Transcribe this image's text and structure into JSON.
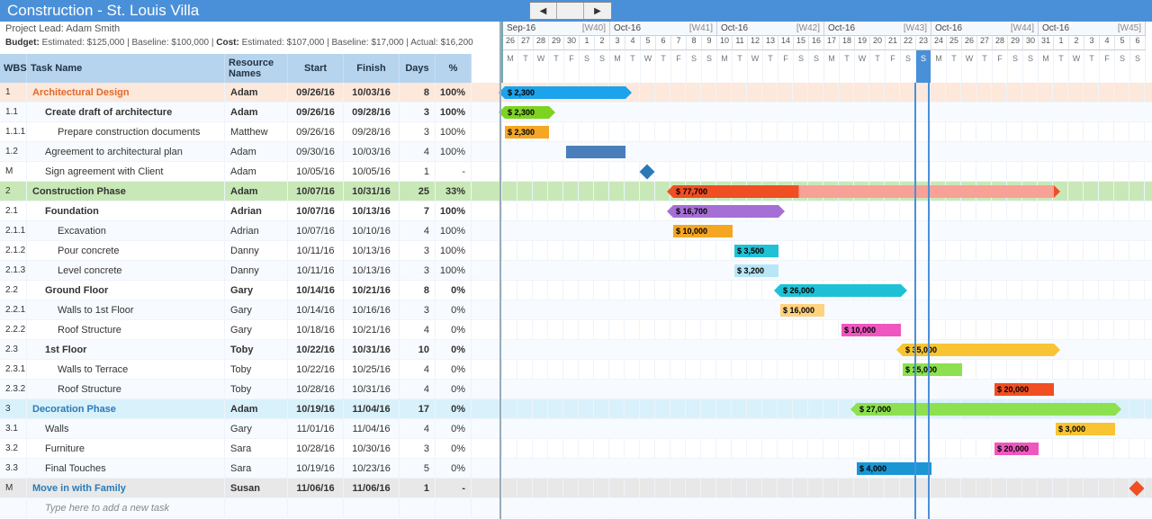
{
  "title": "Construction - St. Louis Villa",
  "project_lead": "Project Lead: Adam Smith",
  "budget_line": {
    "budget_label": "Budget:",
    "est_label": "Estimated:",
    "est": "$125,000",
    "base_label": "Baseline:",
    "base": "$100,000",
    "cost_label": "Cost:",
    "cest": "$107,000",
    "cbase": "$17,000",
    "act_label": "Actual:",
    "act": "$16,200"
  },
  "columns": {
    "wbs": "WBS",
    "task": "Task Name",
    "res": "Resource Names",
    "start": "Start",
    "finish": "Finish",
    "days": "Days",
    "pct": "%"
  },
  "nav": {
    "left": "◀",
    "mid": "",
    "right": "▶"
  },
  "weeks": [
    {
      "m": "Sep-16",
      "w": "[W40]"
    },
    {
      "m": "Oct-16",
      "w": "[W41]"
    },
    {
      "m": "Oct-16",
      "w": "[W42]"
    },
    {
      "m": "Oct-16",
      "w": "[W43]"
    },
    {
      "m": "Oct-16",
      "w": "[W44]"
    },
    {
      "m": "Oct-16",
      "w": "[W45]"
    }
  ],
  "daynums": [
    "26",
    "27",
    "28",
    "29",
    "30",
    "1",
    "2",
    "3",
    "4",
    "5",
    "6",
    "7",
    "8",
    "9",
    "10",
    "11",
    "12",
    "13",
    "14",
    "15",
    "16",
    "17",
    "18",
    "19",
    "20",
    "21",
    "22",
    "23",
    "24",
    "25",
    "26",
    "27",
    "28",
    "29",
    "30",
    "31",
    "1",
    "2",
    "3",
    "4",
    "5",
    "6"
  ],
  "dows": [
    "M",
    "T",
    "W",
    "T",
    "F",
    "S",
    "S",
    "M",
    "T",
    "W",
    "T",
    "F",
    "S",
    "S",
    "M",
    "T",
    "W",
    "T",
    "F",
    "S",
    "S",
    "M",
    "T",
    "W",
    "T",
    "F",
    "S",
    "S",
    "M",
    "T",
    "W",
    "T",
    "F",
    "S",
    "S",
    "M",
    "T",
    "W",
    "T",
    "F",
    "S",
    "S"
  ],
  "today_idx": 27,
  "day_width": 17,
  "colors": {
    "blue": "#1ca3ec",
    "green": "#7ed321",
    "orange": "#f5a623",
    "royal": "#4a7ebb",
    "diamond": "#2a7ab8",
    "red": "#f04e23",
    "purple": "#a56fd6",
    "cyan": "#1fc1d6",
    "lcyan": "#b9e6f5",
    "magenta": "#f056c0",
    "yellow": "#f8c433",
    "lime": "#8de04f",
    "dblue": "#1a96d4",
    "dorange": "#f5a623",
    "odiamond": "#f04e23",
    "salmon": "#f8a196",
    "lpurple": "#d1b3ea",
    "ltask": "#ffd27f"
  },
  "rows": [
    {
      "wbs": "1",
      "name": "Architectural Design",
      "res": "Adam",
      "start": "09/26/16",
      "finish": "10/03/16",
      "days": "8",
      "pct": "100%",
      "cls": "hl-orange",
      "tcls": "ind0 bold",
      "indent": 0,
      "bold": true
    },
    {
      "wbs": "1.1",
      "name": "Create draft of architecture",
      "res": "Adam",
      "start": "09/26/16",
      "finish": "09/28/16",
      "days": "3",
      "pct": "100%",
      "indent": 1,
      "bold": true
    },
    {
      "wbs": "1.1.1",
      "name": "Prepare construction documents",
      "res": "Matthew",
      "start": "09/26/16",
      "finish": "09/28/16",
      "days": "3",
      "pct": "100%",
      "indent": 2
    },
    {
      "wbs": "1.2",
      "name": "Agreement to architectural plan",
      "res": "Adam",
      "start": "09/30/16",
      "finish": "10/03/16",
      "days": "4",
      "pct": "100%",
      "indent": 1
    },
    {
      "wbs": "M",
      "name": "Sign agreement with Client",
      "res": "Adam",
      "start": "10/05/16",
      "finish": "10/05/16",
      "days": "1",
      "pct": "-",
      "indent": 1
    },
    {
      "wbs": "2",
      "name": "Construction Phase",
      "res": "Adam",
      "start": "10/07/16",
      "finish": "10/31/16",
      "days": "25",
      "pct": "33%",
      "cls": "hl-green",
      "tcls": "bold",
      "indent": 0,
      "bold": true
    },
    {
      "wbs": "2.1",
      "name": "Foundation",
      "res": "Adrian",
      "start": "10/07/16",
      "finish": "10/13/16",
      "days": "7",
      "pct": "100%",
      "indent": 1,
      "bold": true
    },
    {
      "wbs": "2.1.1",
      "name": "Excavation",
      "res": "Adrian",
      "start": "10/07/16",
      "finish": "10/10/16",
      "days": "4",
      "pct": "100%",
      "indent": 2
    },
    {
      "wbs": "2.1.2",
      "name": "Pour concrete",
      "res": "Danny",
      "start": "10/11/16",
      "finish": "10/13/16",
      "days": "3",
      "pct": "100%",
      "indent": 2
    },
    {
      "wbs": "2.1.3",
      "name": "Level concrete",
      "res": "Danny",
      "start": "10/11/16",
      "finish": "10/13/16",
      "days": "3",
      "pct": "100%",
      "indent": 2
    },
    {
      "wbs": "2.2",
      "name": "Ground Floor",
      "res": "Gary",
      "start": "10/14/16",
      "finish": "10/21/16",
      "days": "8",
      "pct": "0%",
      "indent": 1,
      "bold": true
    },
    {
      "wbs": "2.2.1",
      "name": "Walls to 1st Floor",
      "res": "Gary",
      "start": "10/14/16",
      "finish": "10/16/16",
      "days": "3",
      "pct": "0%",
      "indent": 2
    },
    {
      "wbs": "2.2.2",
      "name": "Roof Structure",
      "res": "Gary",
      "start": "10/18/16",
      "finish": "10/21/16",
      "days": "4",
      "pct": "0%",
      "indent": 2
    },
    {
      "wbs": "2.3",
      "name": "1st Floor",
      "res": "Toby",
      "start": "10/22/16",
      "finish": "10/31/16",
      "days": "10",
      "pct": "0%",
      "indent": 1,
      "bold": true
    },
    {
      "wbs": "2.3.1",
      "name": "Walls to Terrace",
      "res": "Toby",
      "start": "10/22/16",
      "finish": "10/25/16",
      "days": "4",
      "pct": "0%",
      "indent": 2
    },
    {
      "wbs": "2.3.2",
      "name": "Roof Structure",
      "res": "Toby",
      "start": "10/28/16",
      "finish": "10/31/16",
      "days": "4",
      "pct": "0%",
      "indent": 2
    },
    {
      "wbs": "3",
      "name": "Decoration Phase",
      "res": "Adam",
      "start": "10/19/16",
      "finish": "11/04/16",
      "days": "17",
      "pct": "0%",
      "cls": "hl-cyan",
      "tcls": "ind-blue bold",
      "indent": 0,
      "bold": true
    },
    {
      "wbs": "3.1",
      "name": "Walls",
      "res": "Gary",
      "start": "11/01/16",
      "finish": "11/04/16",
      "days": "4",
      "pct": "0%",
      "indent": 1
    },
    {
      "wbs": "3.2",
      "name": "Furniture",
      "res": "Sara",
      "start": "10/28/16",
      "finish": "10/30/16",
      "days": "3",
      "pct": "0%",
      "indent": 1
    },
    {
      "wbs": "3.3",
      "name": "Final Touches",
      "res": "Sara",
      "start": "10/19/16",
      "finish": "10/23/16",
      "days": "5",
      "pct": "0%",
      "indent": 1
    },
    {
      "wbs": "M",
      "name": "Move in with Family",
      "res": "Susan",
      "start": "11/06/16",
      "finish": "11/06/16",
      "days": "1",
      "pct": "-",
      "cls": "hl-gray",
      "tcls": "ind-blue bold",
      "indent": 0,
      "bold": true
    },
    {
      "wbs": "",
      "name": "Type here to add a new task",
      "res": "",
      "start": "",
      "finish": "",
      "days": "",
      "pct": "",
      "tcls": "ph",
      "indent": 1
    }
  ],
  "bars": [
    {
      "row": 0,
      "start": 0,
      "len": 8,
      "color": "blue",
      "label": "$ 2,300",
      "summary": true
    },
    {
      "row": 1,
      "start": 0,
      "len": 3,
      "color": "green",
      "label": "$ 2,300",
      "summary": true
    },
    {
      "row": 2,
      "start": 0,
      "len": 3,
      "color": "orange",
      "label": "$ 2,300"
    },
    {
      "row": 3,
      "start": 4,
      "len": 4,
      "color": "royal",
      "label": ""
    },
    {
      "row": 5,
      "start": 11,
      "len": 25,
      "color": "red",
      "label": "$ 77,700",
      "summary": true,
      "prog": 0.33,
      "progcolor": "salmon"
    },
    {
      "row": 6,
      "start": 11,
      "len": 7,
      "color": "purple",
      "label": "$ 16,700",
      "summary": true
    },
    {
      "row": 7,
      "start": 11,
      "len": 4,
      "color": "orange",
      "label": "$ 10,000"
    },
    {
      "row": 8,
      "start": 15,
      "len": 3,
      "color": "cyan",
      "label": "$ 3,500"
    },
    {
      "row": 9,
      "start": 15,
      "len": 3,
      "color": "lcyan",
      "label": "$ 3,200"
    },
    {
      "row": 10,
      "start": 18,
      "len": 8,
      "color": "cyan",
      "label": "$ 26,000",
      "summary": true
    },
    {
      "row": 11,
      "start": 18,
      "len": 3,
      "color": "ltask",
      "label": "$ 16,000"
    },
    {
      "row": 12,
      "start": 22,
      "len": 4,
      "color": "magenta",
      "label": "$ 10,000"
    },
    {
      "row": 13,
      "start": 26,
      "len": 10,
      "color": "yellow",
      "label": "$ 35,000",
      "summary": true
    },
    {
      "row": 14,
      "start": 26,
      "len": 4,
      "color": "lime",
      "label": "$ 15,000"
    },
    {
      "row": 15,
      "start": 32,
      "len": 4,
      "color": "red",
      "label": "$ 20,000"
    },
    {
      "row": 16,
      "start": 23,
      "len": 17,
      "color": "lime",
      "label": "$ 27,000",
      "summary": true
    },
    {
      "row": 17,
      "start": 36,
      "len": 4,
      "color": "yellow",
      "label": "$ 3,000"
    },
    {
      "row": 18,
      "start": 32,
      "len": 3,
      "color": "magenta",
      "label": "$ 20,000"
    },
    {
      "row": 19,
      "start": 23,
      "len": 5,
      "color": "dblue",
      "label": "$ 4,000"
    }
  ],
  "diamonds": [
    {
      "row": 4,
      "day": 9,
      "color": "diamond"
    },
    {
      "row": 20,
      "day": 41,
      "color": "odiamond"
    }
  ]
}
